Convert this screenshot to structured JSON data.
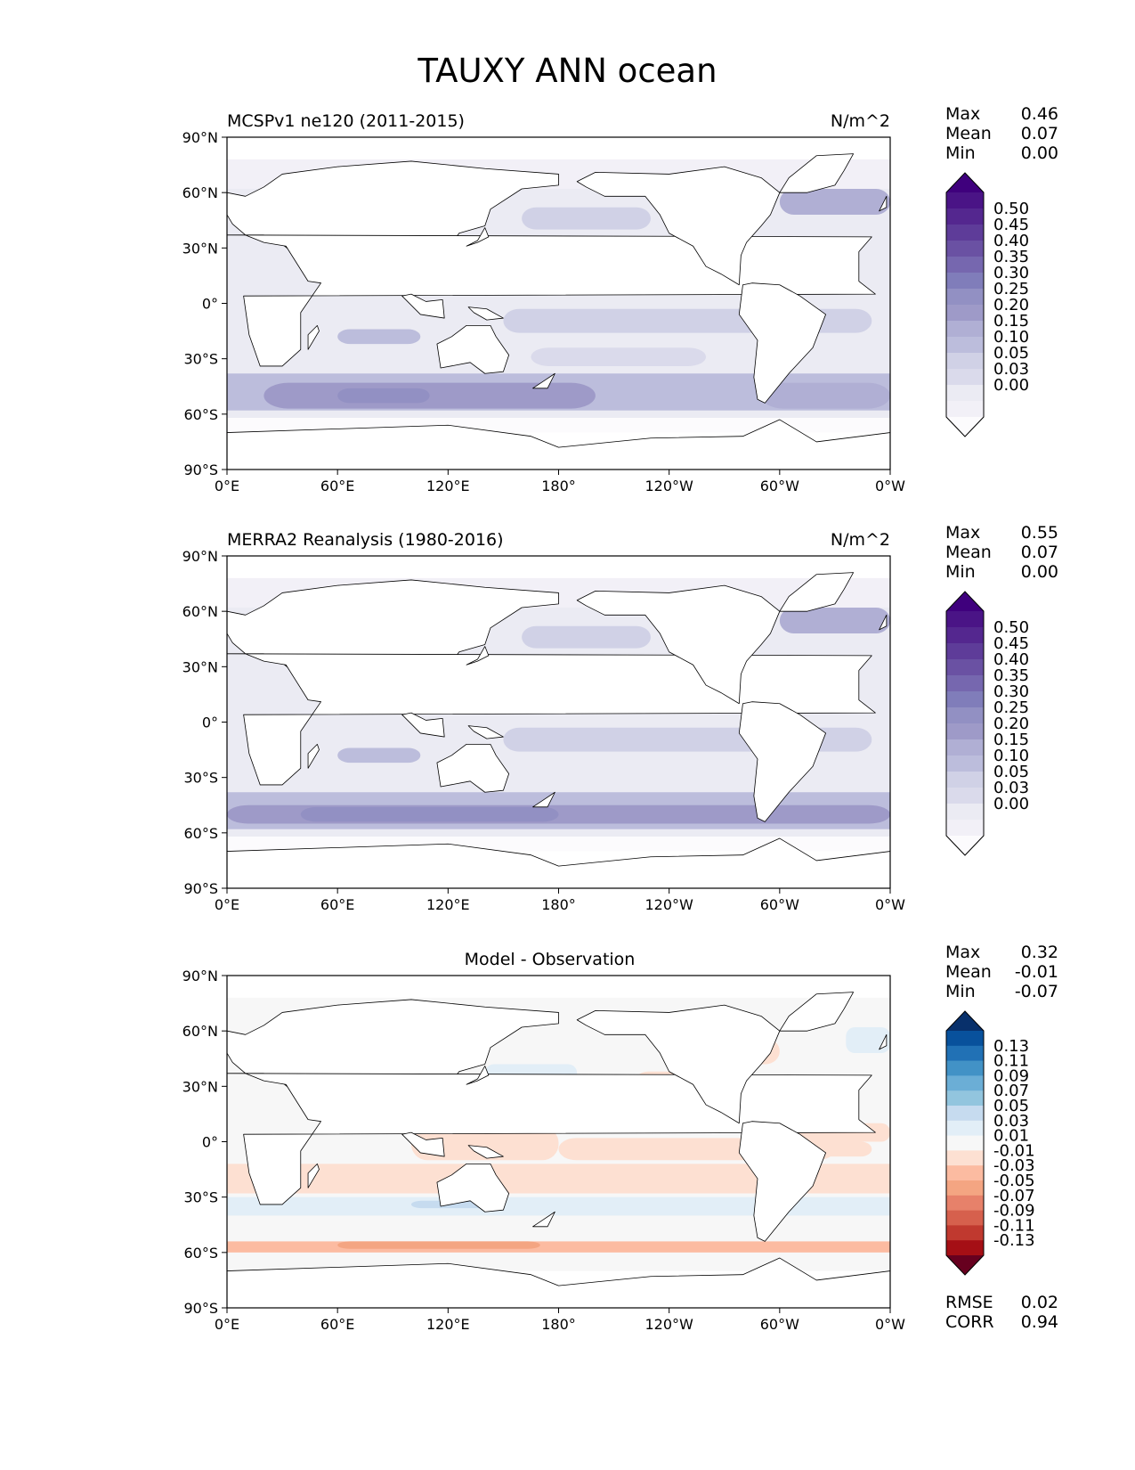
{
  "title": "TAUXY ANN ocean",
  "x_ticks": [
    "0°E",
    "60°E",
    "120°E",
    "180°",
    "120°W",
    "60°W",
    "0°W"
  ],
  "y_ticks": [
    "90°N",
    "60°N",
    "30°N",
    "0°",
    "30°S",
    "60°S",
    "90°S"
  ],
  "panels": [
    {
      "title_left": "MCSPv1 ne120 (2011-2015)",
      "title_center": "",
      "units": "N/m^2",
      "stats": [
        {
          "label": "Max",
          "value": "0.46"
        },
        {
          "label": "Mean",
          "value": "0.07"
        },
        {
          "label": "Min",
          "value": "0.00"
        }
      ],
      "colorbar": {
        "labels": [
          "0.50",
          "0.45",
          "0.40",
          "0.35",
          "0.30",
          "0.25",
          "0.20",
          "0.15",
          "0.10",
          "0.05",
          "0.03",
          "0.00"
        ],
        "colors": [
          "#3f007d",
          "#4a1486",
          "#54278f",
          "#5e3c99",
          "#6a51a3",
          "#7667af",
          "#807dba",
          "#9290c3",
          "#9e9ac8",
          "#b0afd4",
          "#bcbddc",
          "#d0d1e6",
          "#dadaeb",
          "#ebebf3",
          "#f2f0f7",
          "#fcfbfd"
        ]
      },
      "extra_stats": []
    },
    {
      "title_left": "MERRA2 Reanalysis (1980-2016)",
      "title_center": "",
      "units": "N/m^2",
      "stats": [
        {
          "label": "Max",
          "value": "0.55"
        },
        {
          "label": "Mean",
          "value": "0.07"
        },
        {
          "label": "Min",
          "value": "0.00"
        }
      ],
      "colorbar": {
        "labels": [
          "0.50",
          "0.45",
          "0.40",
          "0.35",
          "0.30",
          "0.25",
          "0.20",
          "0.15",
          "0.10",
          "0.05",
          "0.03",
          "0.00"
        ],
        "colors": [
          "#3f007d",
          "#4a1486",
          "#54278f",
          "#5e3c99",
          "#6a51a3",
          "#7667af",
          "#807dba",
          "#9290c3",
          "#9e9ac8",
          "#b0afd4",
          "#bcbddc",
          "#d0d1e6",
          "#dadaeb",
          "#ebebf3",
          "#f2f0f7",
          "#fcfbfd"
        ]
      },
      "extra_stats": []
    },
    {
      "title_left": "",
      "title_center": "Model - Observation",
      "units": "",
      "stats": [
        {
          "label": "Max",
          "value": "0.32"
        },
        {
          "label": "Mean",
          "value": "-0.01"
        },
        {
          "label": "Min",
          "value": "-0.07"
        }
      ],
      "colorbar": {
        "labels": [
          "0.13",
          "0.11",
          "0.09",
          "0.07",
          "0.05",
          "0.03",
          "0.01",
          "-0.01",
          "-0.03",
          "-0.05",
          "-0.07",
          "-0.09",
          "-0.11",
          "-0.13"
        ],
        "colors": [
          "#08306b",
          "#08519c",
          "#2171b5",
          "#4292c6",
          "#6baed6",
          "#92c5de",
          "#c6dbef",
          "#e2eef7",
          "#f7f7f7",
          "#fde0d2",
          "#fcbba1",
          "#f4a582",
          "#e7816a",
          "#d6604d",
          "#c0392f",
          "#a50f15",
          "#67001f"
        ]
      },
      "extra_stats": [
        {
          "label": "RMSE",
          "value": "0.02"
        },
        {
          "label": "CORR",
          "value": "0.94"
        }
      ]
    }
  ]
}
